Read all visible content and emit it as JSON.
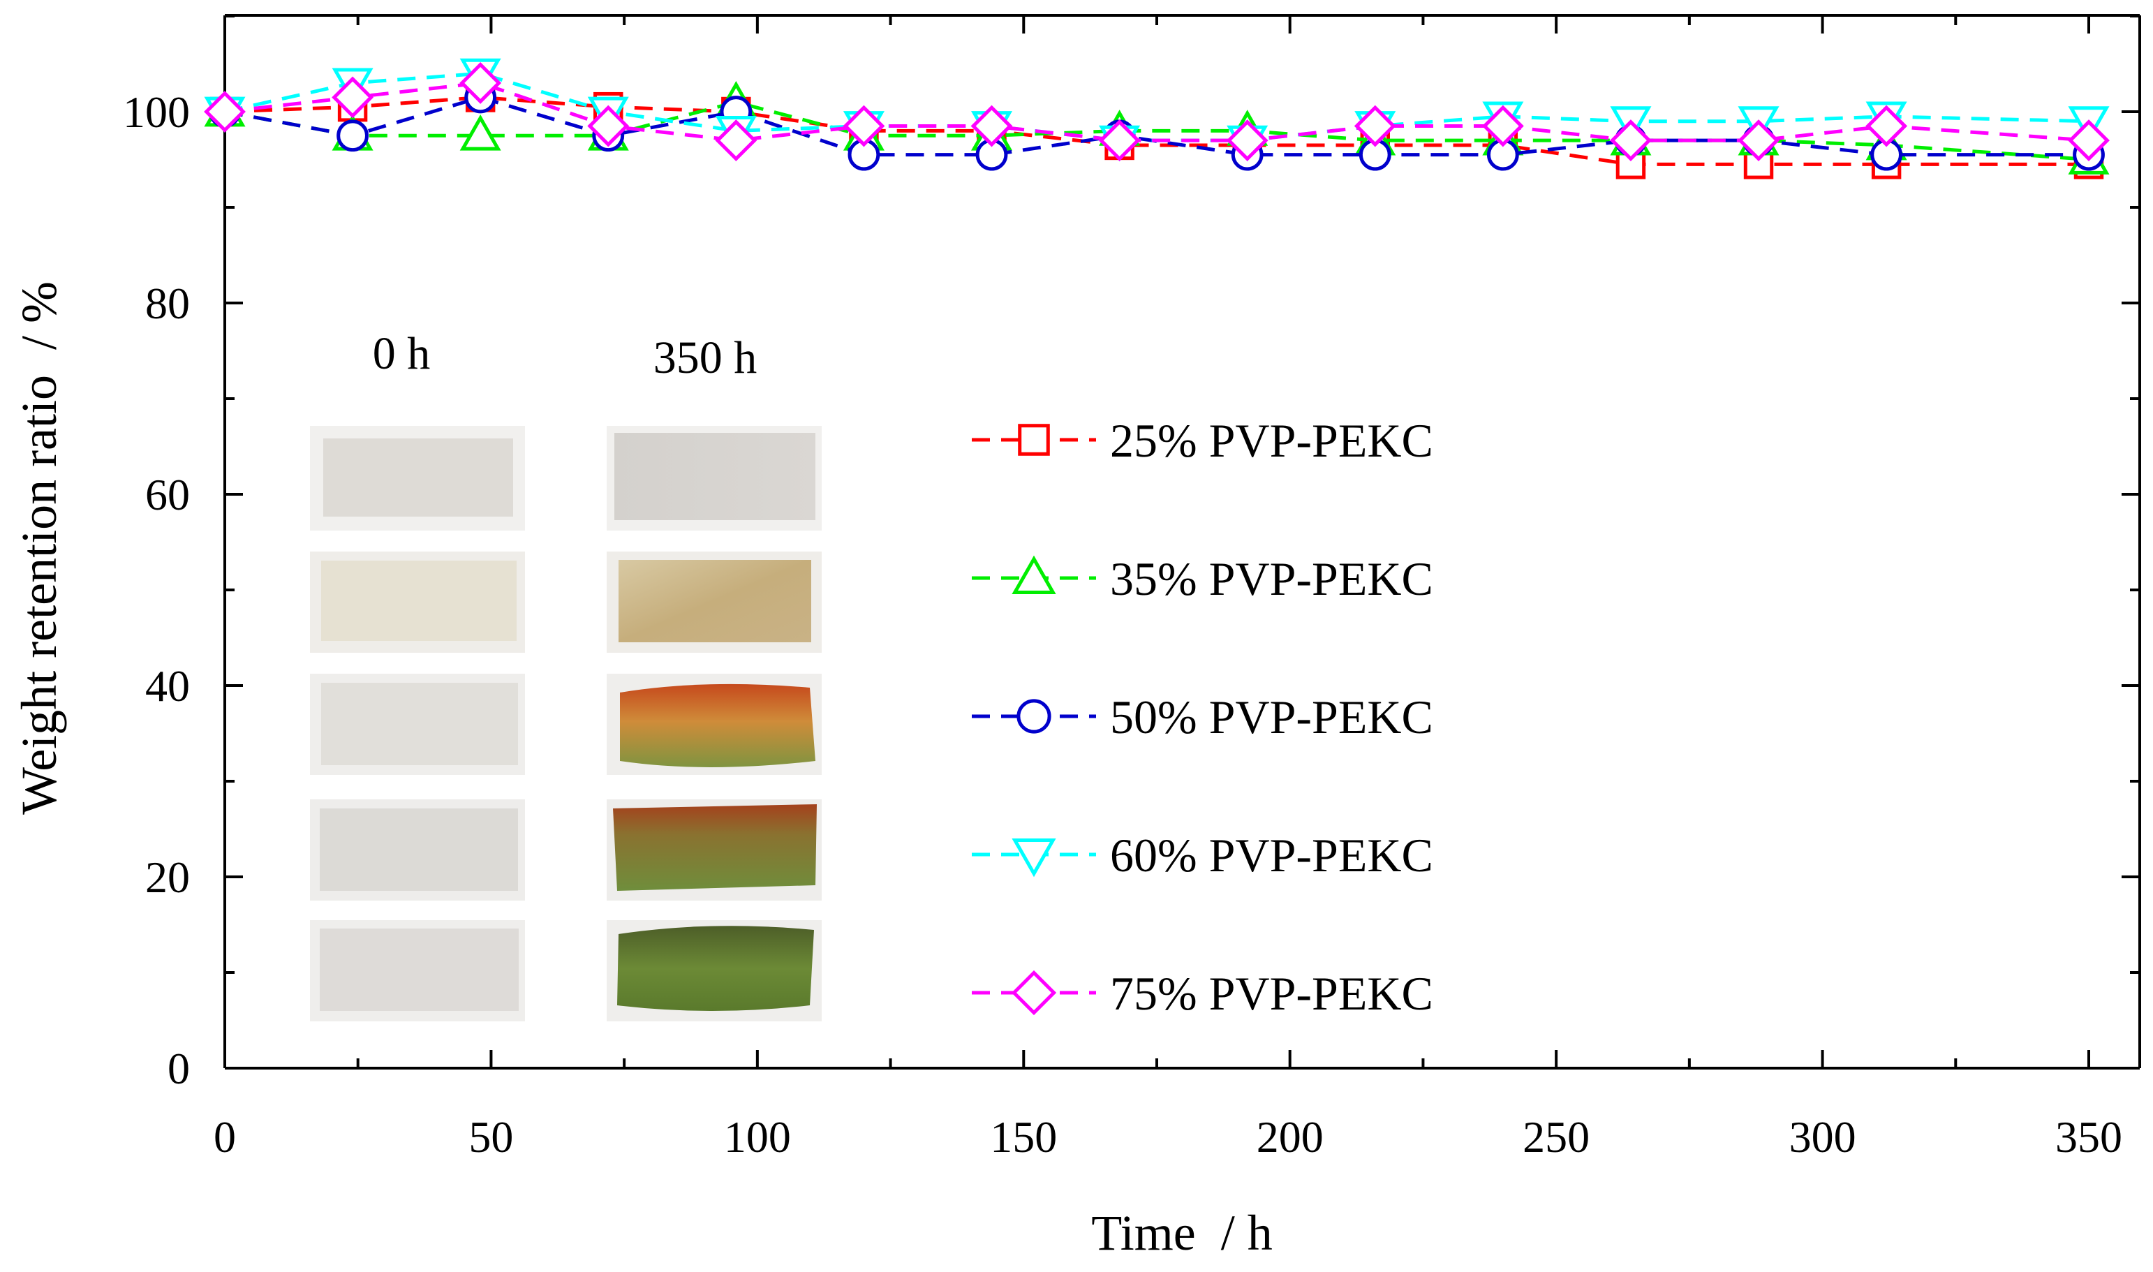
{
  "chart_data": {
    "type": "line",
    "xlabel": "Time  / h",
    "ylabel": "Weight retention ratio  / %",
    "xlim": [
      0,
      360
    ],
    "ylim": [
      0,
      110
    ],
    "xticks": [
      0,
      50,
      100,
      150,
      200,
      250,
      300,
      350
    ],
    "yticks": [
      0,
      20,
      40,
      60,
      80,
      100
    ],
    "x": [
      0,
      24,
      48,
      72,
      96,
      120,
      144,
      168,
      192,
      216,
      240,
      264,
      288,
      312,
      350
    ],
    "series": [
      {
        "name": "25% PVP-PEKC",
        "color": "#ff0000",
        "marker": "square",
        "values": [
          100,
          100.5,
          101.5,
          100.5,
          100,
          98,
          98,
          96.5,
          96.5,
          96.5,
          96.5,
          94.5,
          94.5,
          94.5,
          94.5
        ]
      },
      {
        "name": "35% PVP-PEKC",
        "color": "#00ee00",
        "marker": "triangle-up",
        "values": [
          100,
          97.5,
          97.5,
          97.5,
          101,
          97.5,
          97.5,
          98,
          98,
          97,
          97,
          97,
          97,
          96.5,
          95
        ]
      },
      {
        "name": "50% PVP-PEKC",
        "color": "#0000cc",
        "marker": "circle",
        "values": [
          100,
          97.5,
          101.5,
          97.5,
          100,
          95.5,
          95.5,
          97.5,
          95.5,
          95.5,
          95.5,
          97,
          97,
          95.5,
          95.5
        ]
      },
      {
        "name": "60% PVP-PEKC",
        "color": "#00ffff",
        "marker": "triangle-down",
        "values": [
          100,
          103,
          104,
          100,
          98,
          98.5,
          98.5,
          97,
          97,
          98.5,
          99.5,
          99,
          99,
          99.5,
          99
        ]
      },
      {
        "name": "75% PVP-PEKC",
        "color": "#ff00ff",
        "marker": "diamond",
        "values": [
          100,
          101.5,
          103,
          98.5,
          97,
          98.5,
          98.5,
          97,
          97,
          98.5,
          98.5,
          97,
          97,
          98.5,
          97
        ]
      }
    ],
    "legend_position": "center",
    "inset": {
      "labels": [
        "0 h",
        "350 h"
      ],
      "rows": [
        {
          "before": "#dedbd6",
          "after": "#d6d3d0"
        },
        {
          "before": "#e6e1d2",
          "after": "#cbb790"
        },
        {
          "before": "#e1dfda",
          "after": "#b2802f"
        },
        {
          "before": "#dcdad6",
          "after": "#7f7a35"
        },
        {
          "before": "#dedbd8",
          "after": "#667834"
        }
      ]
    }
  }
}
